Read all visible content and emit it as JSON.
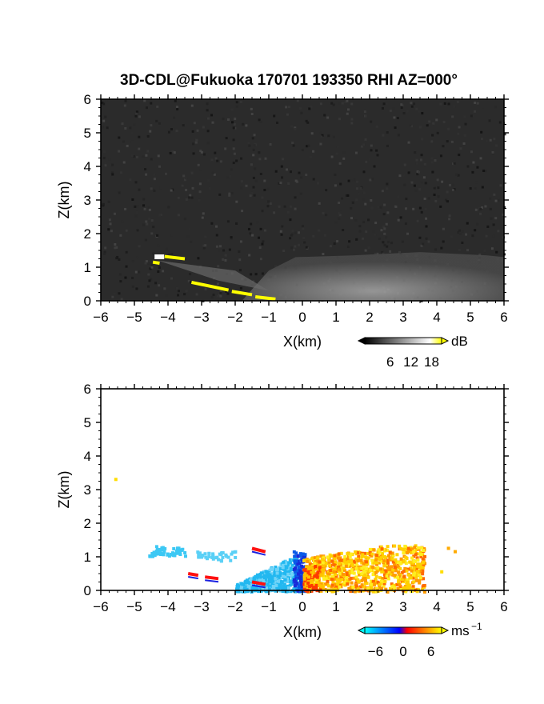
{
  "chart_data": [
    {
      "type": "heatmap",
      "title": "3D-CDL@Fukuoka 170701 193350 RHI AZ=000°",
      "xlabel": "X(km)",
      "ylabel": "Z(km)",
      "xlim": [
        -6,
        6
      ],
      "ylim": [
        0,
        6
      ],
      "xticks": [
        "-6",
        "-5",
        "-4",
        "-3",
        "-2",
        "-1",
        "0",
        "1",
        "2",
        "3",
        "4",
        "5",
        "6"
      ],
      "yticks": [
        "0",
        "1",
        "2",
        "3",
        "4",
        "5",
        "6"
      ],
      "background": "#2b2b2b",
      "colorbar": {
        "unit": "dB",
        "ticks": [
          "6",
          "12",
          "18"
        ],
        "colors": [
          "#000000",
          "#ffffff",
          "#ffff00"
        ]
      },
      "features": [
        {
          "name": "echo",
          "x": [
            -1.5,
            4.2
          ],
          "z": [
            0,
            1.4
          ],
          "color": "#9a9a9a"
        },
        {
          "name": "high",
          "x": [
            -4.5,
            -3.4
          ],
          "z": [
            1.1,
            1.35
          ],
          "color": "#ffff00"
        }
      ]
    },
    {
      "type": "heatmap",
      "xlabel": "X(km)",
      "ylabel": "Z(km)",
      "xlim": [
        -6,
        6
      ],
      "ylim": [
        0,
        6
      ],
      "xticks": [
        "-6",
        "-5",
        "-4",
        "-3",
        "-2",
        "-1",
        "0",
        "1",
        "2",
        "3",
        "4",
        "5",
        "6"
      ],
      "yticks": [
        "0",
        "1",
        "2",
        "3",
        "4",
        "5",
        "6"
      ],
      "colorbar": {
        "unit": "ms",
        "unit_exp": "−1",
        "ticks": [
          "−6",
          "0",
          "6"
        ],
        "colors": [
          "#00ffff",
          "#0000ff",
          "#ff0000",
          "#ffff00"
        ]
      },
      "velocity_range": [
        -6,
        6
      ]
    }
  ]
}
